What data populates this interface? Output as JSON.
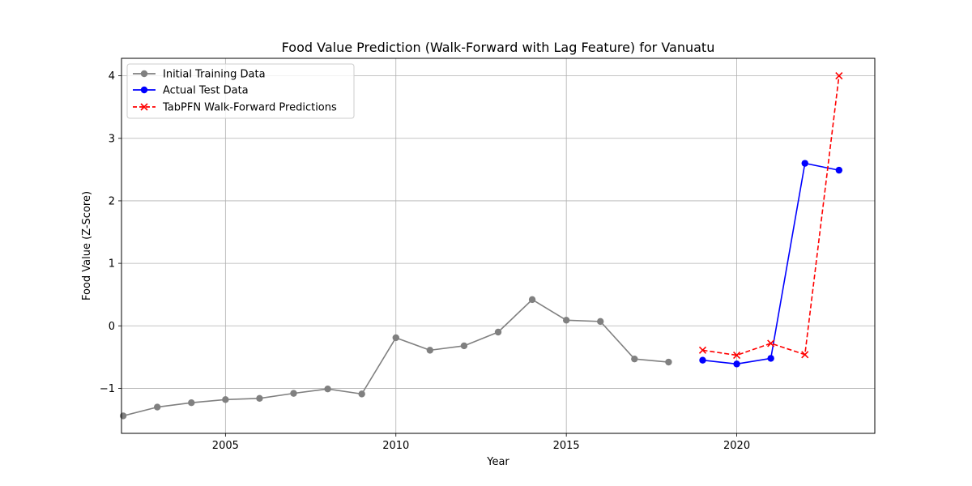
{
  "chart_data": {
    "type": "line",
    "title": "Food Value Prediction (Walk-Forward with Lag Feature) for Vanuatu",
    "xlabel": "Year",
    "ylabel": "Food Value (Z-Score)",
    "xlim": [
      2001.95,
      2024.05
    ],
    "ylim": [
      -1.72,
      4.28
    ],
    "x_ticks": [
      2005,
      2010,
      2015,
      2020
    ],
    "y_ticks": [
      -1,
      0,
      1,
      2,
      3,
      4
    ],
    "grid": true,
    "legend_position": "upper left",
    "series": [
      {
        "name": "Initial Training Data",
        "color": "#808080",
        "marker": "circle",
        "line_style": "solid",
        "x": [
          2002,
          2003,
          2004,
          2005,
          2006,
          2007,
          2008,
          2009,
          2010,
          2011,
          2012,
          2013,
          2014,
          2015,
          2016,
          2017,
          2018
        ],
        "y": [
          -1.44,
          -1.3,
          -1.23,
          -1.18,
          -1.16,
          -1.08,
          -1.01,
          -1.09,
          -0.19,
          -0.39,
          -0.32,
          -0.1,
          0.42,
          0.09,
          0.07,
          -0.53,
          -0.58
        ]
      },
      {
        "name": "Actual Test Data",
        "color": "#0000ff",
        "marker": "circle",
        "line_style": "solid",
        "x": [
          2019,
          2020,
          2021,
          2022,
          2023
        ],
        "y": [
          -0.55,
          -0.61,
          -0.52,
          2.6,
          2.49
        ]
      },
      {
        "name": "TabPFN Walk-Forward Predictions",
        "color": "#ff0000",
        "marker": "x",
        "line_style": "dashed",
        "x": [
          2019,
          2020,
          2021,
          2022,
          2023
        ],
        "y": [
          -0.39,
          -0.47,
          -0.28,
          -0.46,
          4.0
        ]
      }
    ]
  }
}
